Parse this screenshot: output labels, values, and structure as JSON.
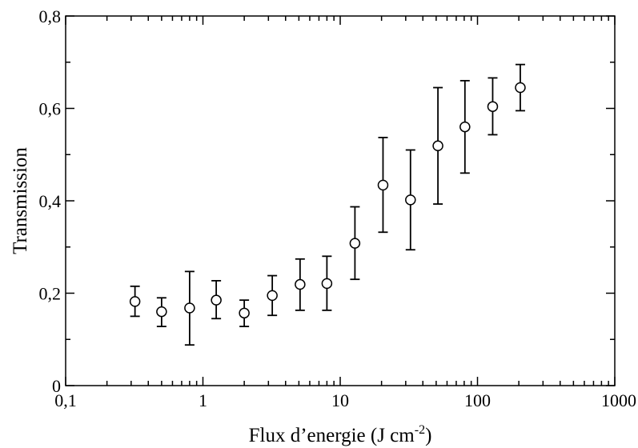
{
  "chart_data": {
    "type": "scatter",
    "title": "",
    "xlabel": "Flux d’energie (J cm",
    "xlabel_superscript": "-2",
    "xlabel_suffix": ")",
    "ylabel": "Transmission",
    "xscale": "log",
    "xlim": [
      0.1,
      1000
    ],
    "ylim": [
      0,
      0.8
    ],
    "x_ticks": [
      {
        "value": 0.1,
        "label": "0,1"
      },
      {
        "value": 1,
        "label": "1"
      },
      {
        "value": 10,
        "label": "10"
      },
      {
        "value": 100,
        "label": "100"
      },
      {
        "value": 1000,
        "label": "1000"
      }
    ],
    "y_ticks": [
      {
        "value": 0,
        "label": "0"
      },
      {
        "value": 0.2,
        "label": "0,2"
      },
      {
        "value": 0.4,
        "label": "0,4"
      },
      {
        "value": 0.6,
        "label": "0,6"
      },
      {
        "value": 0.8,
        "label": "0,8"
      }
    ],
    "marker": "open-circle",
    "error_bars": true,
    "grid": false,
    "legend": "none",
    "points": [
      {
        "x": 0.32,
        "y": 0.182,
        "ylow": 0.15,
        "yhigh": 0.215
      },
      {
        "x": 0.5,
        "y": 0.16,
        "ylow": 0.128,
        "yhigh": 0.19
      },
      {
        "x": 0.8,
        "y": 0.168,
        "ylow": 0.088,
        "yhigh": 0.247
      },
      {
        "x": 1.25,
        "y": 0.185,
        "ylow": 0.145,
        "yhigh": 0.227
      },
      {
        "x": 2.0,
        "y": 0.157,
        "ylow": 0.128,
        "yhigh": 0.185
      },
      {
        "x": 3.2,
        "y": 0.195,
        "ylow": 0.152,
        "yhigh": 0.238
      },
      {
        "x": 5.1,
        "y": 0.219,
        "ylow": 0.163,
        "yhigh": 0.274
      },
      {
        "x": 8.0,
        "y": 0.221,
        "ylow": 0.163,
        "yhigh": 0.28
      },
      {
        "x": 12.8,
        "y": 0.308,
        "ylow": 0.23,
        "yhigh": 0.387
      },
      {
        "x": 20.5,
        "y": 0.434,
        "ylow": 0.332,
        "yhigh": 0.537
      },
      {
        "x": 32.5,
        "y": 0.402,
        "ylow": 0.294,
        "yhigh": 0.51
      },
      {
        "x": 51.5,
        "y": 0.519,
        "ylow": 0.393,
        "yhigh": 0.645
      },
      {
        "x": 81.0,
        "y": 0.56,
        "ylow": 0.46,
        "yhigh": 0.66
      },
      {
        "x": 129,
        "y": 0.604,
        "ylow": 0.543,
        "yhigh": 0.666
      },
      {
        "x": 205,
        "y": 0.645,
        "ylow": 0.595,
        "yhigh": 0.695
      }
    ]
  }
}
